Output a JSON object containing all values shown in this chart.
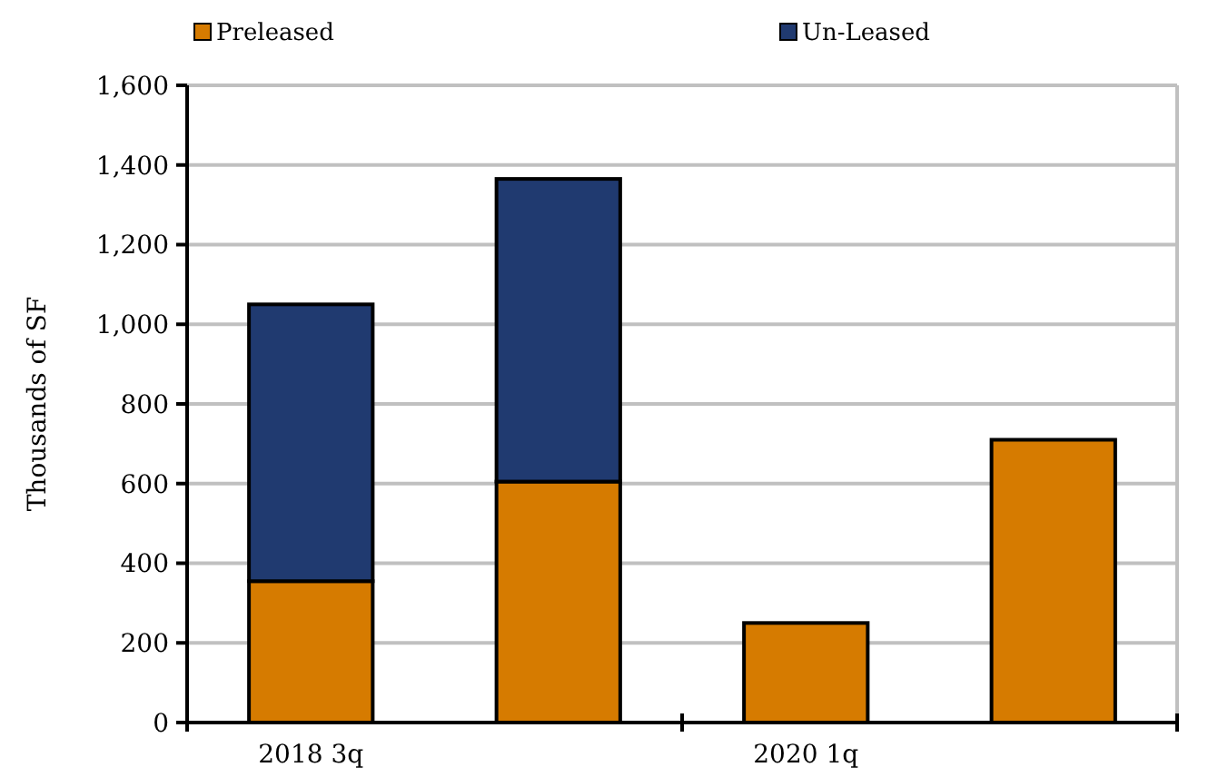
{
  "chart_data": {
    "type": "bar",
    "ylabel": "Thousands of SF",
    "categories": [
      "2018 3q",
      null,
      "2020 1q",
      null
    ],
    "stacked": true,
    "series": [
      {
        "name": "Preleased",
        "color": "#d67b00",
        "values": [
          355,
          605,
          250,
          710
        ]
      },
      {
        "name": "Un-Leased",
        "color": "#203a70",
        "values": [
          695,
          760,
          null,
          null
        ]
      }
    ],
    "ylim": [
      0,
      1600
    ],
    "yticks": [
      {
        "value": 0,
        "label": "0"
      },
      {
        "value": 200,
        "label": "200"
      },
      {
        "value": 400,
        "label": "400"
      },
      {
        "value": 600,
        "label": "600"
      },
      {
        "value": 800,
        "label": "800"
      },
      {
        "value": 1000,
        "label": "1,000"
      },
      {
        "value": 1200,
        "label": "1,200"
      },
      {
        "value": 1400,
        "label": "1,400"
      },
      {
        "value": 1600,
        "label": "1,600"
      }
    ],
    "grid": "y",
    "legend": "top"
  }
}
